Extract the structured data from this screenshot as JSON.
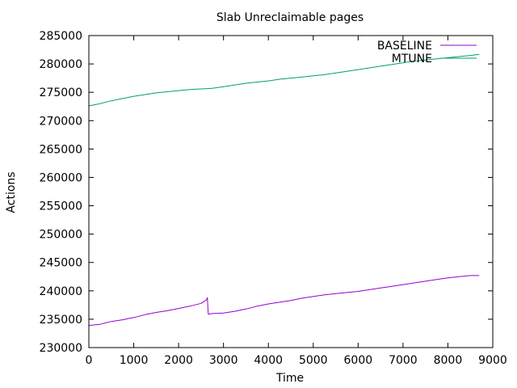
{
  "chart_data": {
    "type": "line",
    "title": "Slab Unreclaimable pages",
    "xlabel": "Time",
    "ylabel": "Actions",
    "xlim": [
      0,
      9000
    ],
    "ylim": [
      230000,
      285000
    ],
    "xticks": [
      0,
      1000,
      2000,
      3000,
      4000,
      5000,
      6000,
      7000,
      8000,
      9000
    ],
    "yticks": [
      230000,
      235000,
      240000,
      245000,
      250000,
      255000,
      260000,
      265000,
      270000,
      275000,
      280000,
      285000
    ],
    "grid": false,
    "legend_position": "top-right",
    "series": [
      {
        "name": "BASELINE",
        "color": "#9400d3",
        "x": [
          0,
          250,
          500,
          750,
          1000,
          1250,
          1500,
          1750,
          2000,
          2250,
          2500,
          2620,
          2640,
          2660,
          2750,
          3000,
          3250,
          3500,
          3750,
          4000,
          4250,
          4500,
          4750,
          5000,
          5250,
          5500,
          5750,
          6000,
          6250,
          6500,
          6750,
          7000,
          7250,
          7500,
          7750,
          8000,
          8250,
          8500,
          8700
        ],
        "y": [
          233900,
          234100,
          234600,
          234900,
          235300,
          235800,
          236200,
          236500,
          236900,
          237300,
          237800,
          238400,
          238800,
          235900,
          236000,
          236100,
          236400,
          236800,
          237300,
          237700,
          238000,
          238300,
          238700,
          239000,
          239300,
          239500,
          239700,
          239900,
          240200,
          240500,
          240800,
          241100,
          241400,
          241700,
          242000,
          242300,
          242500,
          242700,
          242700
        ]
      },
      {
        "name": "MTUNE",
        "color": "#009e73",
        "x": [
          0,
          250,
          500,
          750,
          1000,
          1250,
          1500,
          1750,
          2000,
          2250,
          2500,
          2750,
          3000,
          3250,
          3500,
          3750,
          4000,
          4250,
          4500,
          4750,
          5000,
          5250,
          5500,
          5750,
          6000,
          6250,
          6500,
          6750,
          7000,
          7250,
          7500,
          7750,
          8000,
          8250,
          8500,
          8700
        ],
        "y": [
          272600,
          273000,
          273500,
          273900,
          274300,
          274600,
          274900,
          275100,
          275300,
          275500,
          275600,
          275700,
          276000,
          276300,
          276600,
          276800,
          277000,
          277300,
          277500,
          277700,
          277900,
          278100,
          278400,
          278700,
          279000,
          279300,
          279600,
          279900,
          280200,
          280500,
          280700,
          280900,
          281100,
          281300,
          281500,
          281700
        ]
      }
    ]
  }
}
